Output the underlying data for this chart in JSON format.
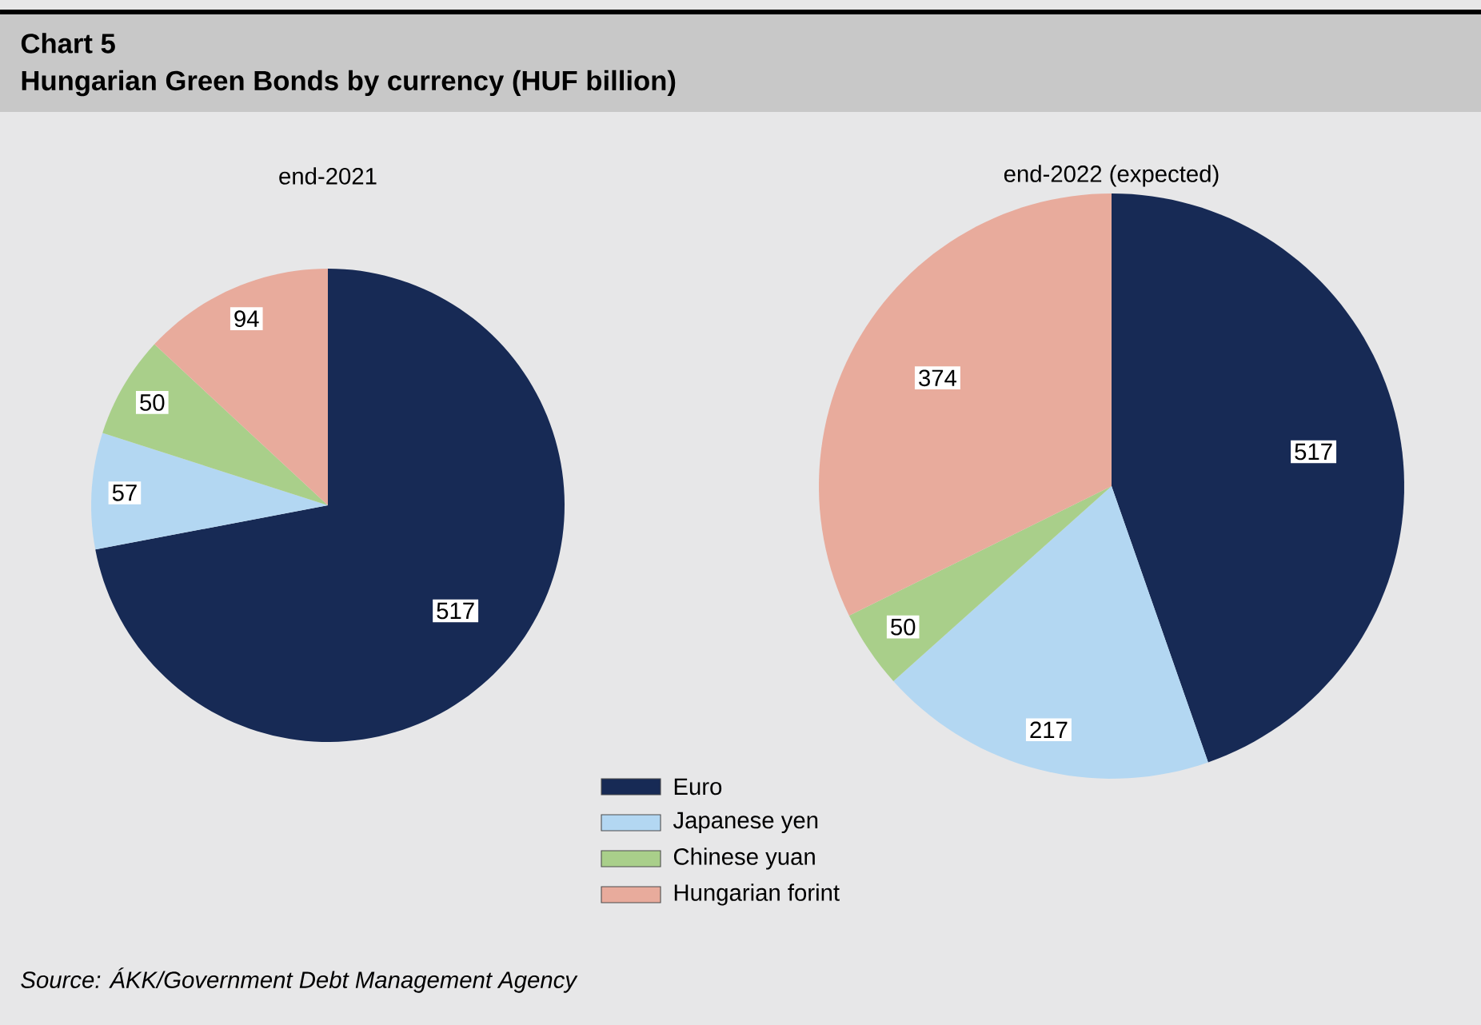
{
  "chart_data": [
    {
      "type": "pie",
      "title": "end-2021",
      "categories": [
        "Euro",
        "Japanese yen",
        "Chinese yuan",
        "Hungarian forint"
      ],
      "values": [
        517,
        57,
        50,
        94
      ],
      "colors": [
        "#172a55",
        "#b3d7f2",
        "#a9cf8a",
        "#e8ab9c"
      ],
      "data_labels": true,
      "legend": "bottom",
      "annotations": [
        "Chart 5",
        "Hungarian Green Bonds by currency (HUF billion)",
        "Source: ÁKK/Government Debt Management Agency"
      ]
    },
    {
      "type": "pie",
      "title": "end-2022 (expected)",
      "categories": [
        null,
        null,
        null,
        null
      ],
      "values": [
        517,
        217,
        50,
        374
      ],
      "colors": [
        "#172a55",
        "#b3d7f2",
        "#a9cf8a",
        "#e8ab9c"
      ],
      "data_labels": true
    }
  ]
}
